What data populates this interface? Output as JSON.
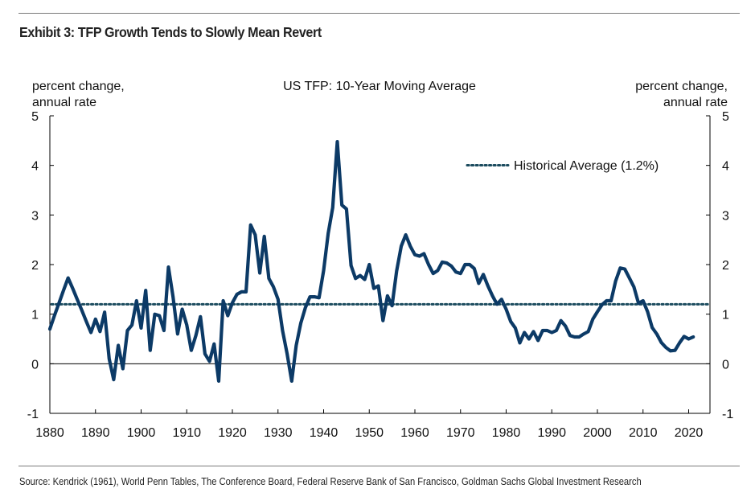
{
  "header": {
    "exhibit_title": "Exhibit 3: TFP Growth Tends to Slowly Mean Revert"
  },
  "footer": {
    "source": "Source: Kendrick (1961), World Penn Tables, The Conference Board, Federal Reserve Bank of San Francisco, Goldman Sachs Global Investment Research"
  },
  "chart_data": {
    "type": "line",
    "title": "US TFP: 10-Year Moving Average",
    "ylabel_left": [
      "percent change,",
      "annual rate"
    ],
    "ylabel_right": [
      "percent change,",
      "annual rate"
    ],
    "xlabel": "",
    "ylim": [
      -1,
      5
    ],
    "xlim": [
      1880,
      2024
    ],
    "yticks": [
      5,
      4,
      3,
      2,
      1,
      0,
      -1
    ],
    "xticks": [
      1880,
      1890,
      1900,
      1910,
      1920,
      1930,
      1940,
      1950,
      1960,
      1970,
      1980,
      1990,
      2000,
      2010,
      2020
    ],
    "grid": false,
    "legend": {
      "placement": "top-right",
      "entries": [
        {
          "label": "Historical Average (1.2%)",
          "style": "dotted"
        }
      ]
    },
    "colors": {
      "series": "#0c3a66",
      "average": "#1b4b5e",
      "zero_line": "#000000"
    },
    "average_value": 1.2,
    "series": [
      {
        "name": "US TFP 10-Year Moving Average",
        "x": [
          1880,
          1881,
          1882,
          1883,
          1884,
          1885,
          1886,
          1887,
          1888,
          1889,
          1890,
          1891,
          1892,
          1893,
          1894,
          1895,
          1896,
          1897,
          1898,
          1899,
          1900,
          1901,
          1902,
          1903,
          1904,
          1905,
          1906,
          1907,
          1908,
          1909,
          1910,
          1911,
          1912,
          1913,
          1914,
          1915,
          1916,
          1917,
          1918,
          1919,
          1920,
          1921,
          1922,
          1923,
          1924,
          1925,
          1926,
          1927,
          1928,
          1929,
          1930,
          1931,
          1932,
          1933,
          1934,
          1935,
          1936,
          1937,
          1938,
          1939,
          1940,
          1941,
          1942,
          1943,
          1944,
          1945,
          1946,
          1947,
          1948,
          1949,
          1950,
          1951,
          1952,
          1953,
          1954,
          1955,
          1956,
          1957,
          1958,
          1959,
          1960,
          1961,
          1962,
          1963,
          1964,
          1965,
          1966,
          1967,
          1968,
          1969,
          1970,
          1971,
          1972,
          1973,
          1974,
          1975,
          1976,
          1977,
          1978,
          1979,
          1980,
          1981,
          1982,
          1983,
          1984,
          1985,
          1986,
          1987,
          1988,
          1989,
          1990,
          1991,
          1992,
          1993,
          1994,
          1995,
          1996,
          1997,
          1998,
          1999,
          2000,
          2001,
          2002,
          2003,
          2004,
          2005,
          2006,
          2007,
          2008,
          2009,
          2010,
          2011,
          2012,
          2013,
          2014,
          2015,
          2016,
          2017,
          2018,
          2019,
          2020,
          2021
        ],
        "values": [
          0.7,
          0.97,
          1.22,
          1.48,
          1.73,
          1.52,
          1.3,
          1.08,
          0.85,
          0.63,
          0.9,
          0.65,
          1.04,
          0.1,
          -0.32,
          0.37,
          -0.1,
          0.67,
          0.78,
          1.27,
          0.72,
          1.48,
          0.27,
          1.0,
          0.97,
          0.67,
          1.95,
          1.35,
          0.6,
          1.1,
          0.78,
          0.27,
          0.57,
          0.95,
          0.2,
          0.05,
          0.4,
          -0.35,
          1.27,
          0.97,
          1.23,
          1.4,
          1.45,
          1.45,
          2.8,
          2.6,
          1.83,
          2.57,
          1.72,
          1.55,
          1.3,
          0.67,
          0.2,
          -0.35,
          0.37,
          0.82,
          1.13,
          1.35,
          1.35,
          1.33,
          1.88,
          2.63,
          3.15,
          4.48,
          3.2,
          3.12,
          1.98,
          1.72,
          1.78,
          1.7,
          2.0,
          1.52,
          1.57,
          0.87,
          1.37,
          1.17,
          1.87,
          2.37,
          2.6,
          2.37,
          2.2,
          2.17,
          2.22,
          2.0,
          1.82,
          1.88,
          2.05,
          2.03,
          1.97,
          1.85,
          1.82,
          2.0,
          2.0,
          1.92,
          1.62,
          1.8,
          1.57,
          1.37,
          1.2,
          1.3,
          1.1,
          0.85,
          0.72,
          0.42,
          0.63,
          0.5,
          0.65,
          0.47,
          0.67,
          0.67,
          0.63,
          0.67,
          0.87,
          0.76,
          0.57,
          0.54,
          0.54,
          0.6,
          0.65,
          0.9,
          1.05,
          1.19,
          1.27,
          1.27,
          1.67,
          1.93,
          1.91,
          1.73,
          1.55,
          1.22,
          1.27,
          1.05,
          0.73,
          0.6,
          0.43,
          0.33,
          0.26,
          0.27,
          0.42,
          0.55,
          0.5,
          0.54
        ]
      }
    ]
  }
}
